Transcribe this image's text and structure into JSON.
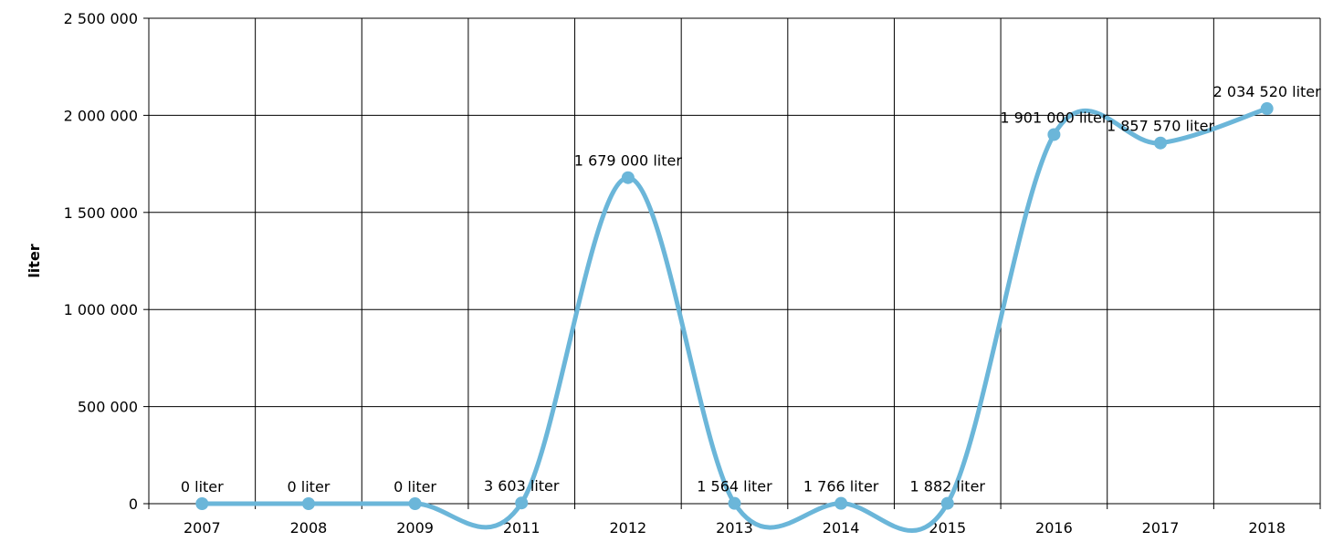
{
  "chart_data": {
    "type": "line",
    "title": "",
    "xlabel": "",
    "ylabel": "liter",
    "categories": [
      "2007",
      "2008",
      "2009",
      "2011",
      "2012",
      "2013",
      "2014",
      "2015",
      "2016",
      "2017",
      "2018"
    ],
    "series": [
      {
        "values": [
          0,
          0,
          0,
          3603,
          1679000,
          1564,
          1766,
          1882,
          1901000,
          1857570,
          2034520
        ],
        "data_labels": [
          "0 liter",
          "0 liter",
          "0 liter",
          "3 603 liter",
          "1 679 000 liter",
          "1 564 liter",
          "1 766 liter",
          "1 882 liter",
          "1 901 000 liter",
          "1 857 570 liter",
          "2 034 520 liter"
        ]
      }
    ],
    "ylim": [
      0,
      2500000
    ],
    "yticks": [
      0,
      500000,
      1000000,
      1500000,
      2000000,
      2500000
    ],
    "ytick_labels": [
      "0",
      "500 000",
      "1 000 000",
      "1 500 000",
      "2 000 000",
      "2 500 000"
    ],
    "grid": true,
    "smooth": true,
    "line_color": "#6bb6d9"
  }
}
